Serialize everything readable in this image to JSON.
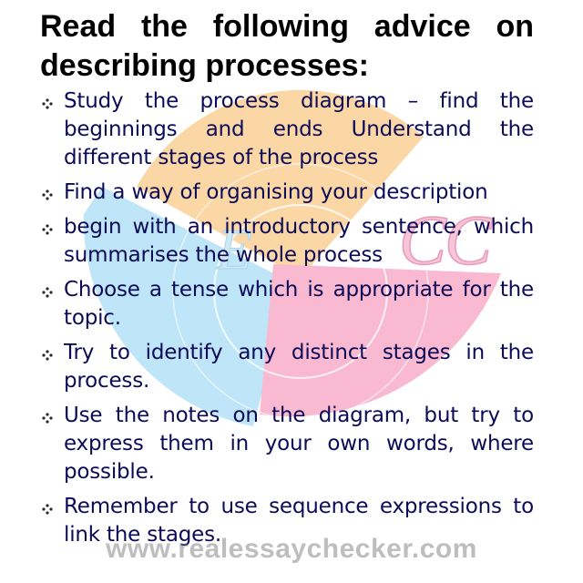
{
  "title": "Read the following advice on describing processes:",
  "bullets": [
    "Study the process diagram – find the beginnings and ends Understand the different stages of the process",
    "Find a way of organising your description",
    "begin with an introductory sentence, which summarises the whole process",
    "Choose a tense which is appropriate for the topic.",
    "Try to identify any distinct stages in the process.",
    "Use the notes on the diagram, but try to express them in your own words, where possible.",
    "Remember to use sequence expressions to link the stages."
  ],
  "watermark": "www.realessaychecker.com",
  "logo_letters": [
    "E",
    "C",
    "C"
  ],
  "colors": {
    "text": "#0d0b57",
    "title": "#000000",
    "logo_orange": "#fbd7a6",
    "logo_blue": "#bfe6f8",
    "logo_pink": "#f8b9d1",
    "bullet": "#2a2a2a"
  },
  "bullet_icon": "diamond-dots-icon"
}
